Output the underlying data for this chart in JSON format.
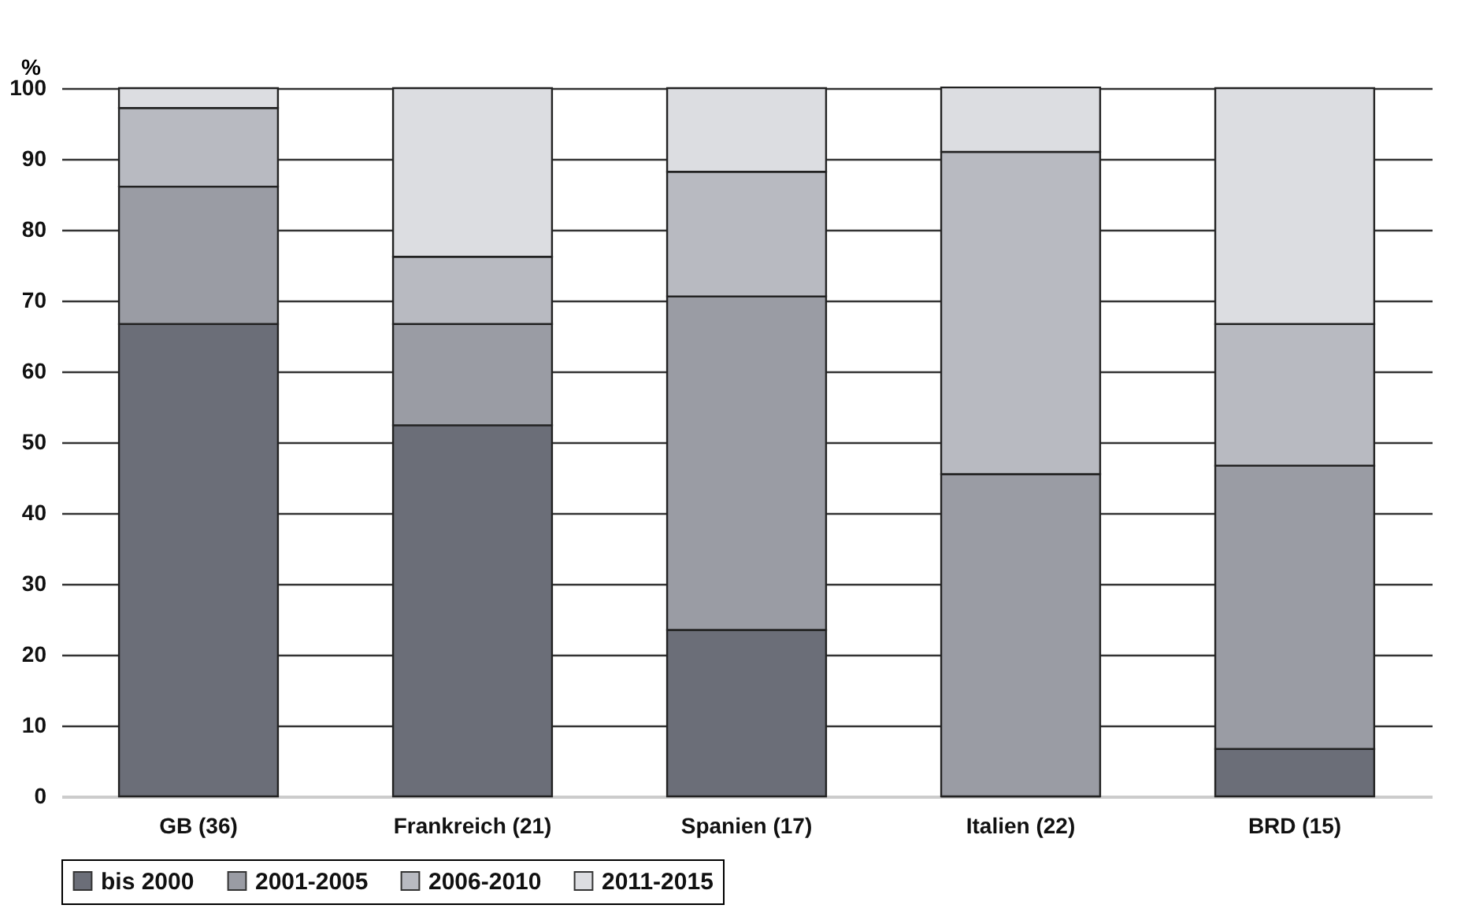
{
  "chart_data": {
    "type": "bar",
    "stacked": true,
    "ylabel": "%",
    "categories": [
      "GB (36)",
      "Frankreich (21)",
      "Spanien (17)",
      "Italien (22)",
      "BRD (15)"
    ],
    "series": [
      {
        "name": "bis 2000",
        "color": "#6b6e78",
        "values": [
          66.7,
          52.4,
          23.5,
          0,
          6.7
        ]
      },
      {
        "name": "2001-2005",
        "color": "#9a9ca4",
        "values": [
          19.4,
          14.3,
          47.1,
          45.5,
          40
        ]
      },
      {
        "name": "2006-2010",
        "color": "#b8bac1",
        "values": [
          11.1,
          9.5,
          17.6,
          45.5,
          20
        ]
      },
      {
        "name": "2011-2015",
        "color": "#dcdde1",
        "values": [
          2.8,
          23.8,
          11.8,
          9.1,
          33.3
        ]
      }
    ],
    "ylim": [
      0,
      100
    ],
    "yticks": [
      0,
      10,
      20,
      30,
      40,
      50,
      60,
      70,
      80,
      90,
      100
    ],
    "grid": "y",
    "legend": "bottom"
  }
}
